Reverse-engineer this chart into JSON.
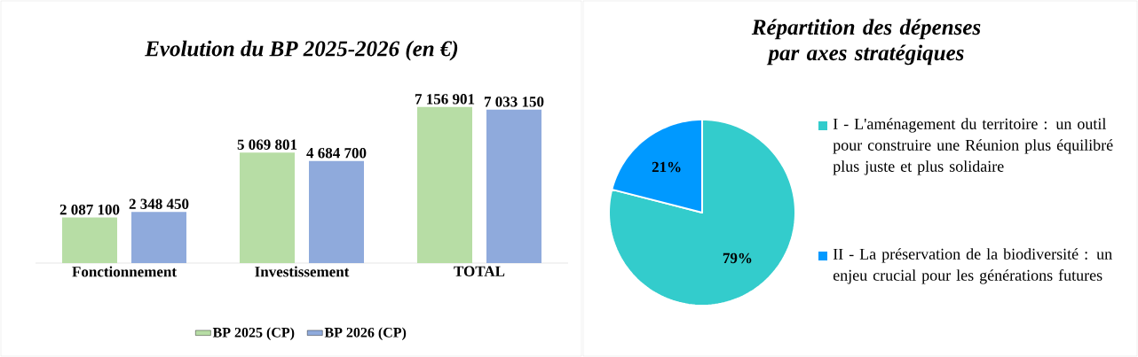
{
  "chart_data": [
    {
      "type": "bar",
      "title": "Evolution du BP 2025-2026 (en €)",
      "categories": [
        "Fonctionnement",
        "Investissement",
        "TOTAL"
      ],
      "series": [
        {
          "name": "BP 2025 (CP)",
          "color": "#b7dda5",
          "values": [
            2087100,
            5069801,
            7156901
          ],
          "value_labels": [
            "2 087 100",
            "5 069 801",
            "7 156 901"
          ]
        },
        {
          "name": "BP 2026 (CP)",
          "color": "#8faadc",
          "values": [
            2348450,
            4684700,
            7033150
          ],
          "value_labels": [
            "2 348 450",
            "4 684 700",
            "7 033 150"
          ]
        }
      ],
      "legend": "bottom"
    },
    {
      "type": "pie",
      "title": "Répartition des dépenses par axes stratégiques",
      "categories": [
        "I - L'aménagement du territoire : un outil pour construire une Réunion plus équilibré plus juste et plus solidaire",
        "II - La préservation de la biodiversité : un enjeu crucial pour les générations futures"
      ],
      "values": [
        79,
        21
      ],
      "value_labels": [
        "79%",
        "21%"
      ],
      "colors": [
        "#33cccc",
        "#0099ff"
      ],
      "legend": "right"
    }
  ]
}
